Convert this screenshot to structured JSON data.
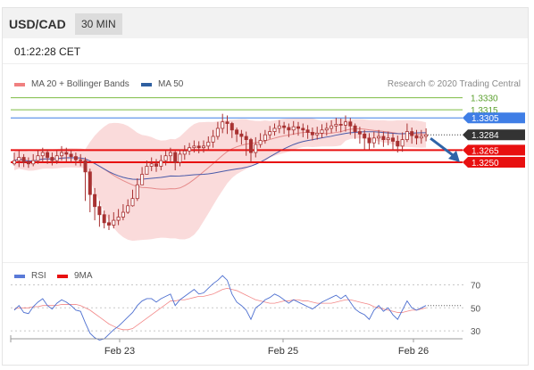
{
  "header": {
    "symbol": "USD/CAD",
    "timeframe": "30 MIN"
  },
  "clock": "01:22:28 CET",
  "credit": "Research © 2020 Trading Central",
  "colors": {
    "candle": "#a83232",
    "bands": "#f8c8c8",
    "ma20": "#e58a8a",
    "ma50": "#4a5aa8",
    "resistance_green": "#7dbb42",
    "resistance_blue": "#3f7ee6",
    "support_red": "#e81010",
    "rsi": "#4d6fd0",
    "rsi_ma": "#e81010",
    "arrow": "#2f64a8",
    "price_tag": "#333333"
  },
  "chart_data": [
    {
      "type": "candlestick",
      "title": "",
      "legend": [
        {
          "label": "MA 20 + Bollinger Bands",
          "color": "#f08080"
        },
        {
          "label": "MA 50",
          "color": "#2f5fa0"
        }
      ],
      "ylim": [
        1.3135,
        1.3345
      ],
      "x_ticks": [
        "Feb 23",
        "Feb 25",
        "Feb 26"
      ],
      "levels": [
        {
          "value": 1.333,
          "label": "1.3330",
          "style": "resistance-green"
        },
        {
          "value": 1.3315,
          "label": "1.3315",
          "style": "resistance-green"
        },
        {
          "value": 1.3305,
          "label": "1.3305",
          "style": "resistance-blue"
        },
        {
          "value": 1.3265,
          "label": "1.3265",
          "style": "support-red"
        },
        {
          "value": 1.325,
          "label": "1.3250",
          "style": "support-red"
        }
      ],
      "last_price": {
        "value": 1.3284,
        "label": "1.3284"
      },
      "forecast": {
        "from": 1.3284,
        "to": 1.325,
        "direction": "down"
      },
      "close": [
        1.3252,
        1.3256,
        1.325,
        1.3248,
        1.3252,
        1.3258,
        1.3262,
        1.3256,
        1.3252,
        1.3258,
        1.3262,
        1.326,
        1.3257,
        1.3253,
        1.3252,
        1.3238,
        1.321,
        1.3195,
        1.3185,
        1.3175,
        1.3172,
        1.3178,
        1.3182,
        1.3188,
        1.3196,
        1.3205,
        1.3222,
        1.3235,
        1.3245,
        1.3248,
        1.3245,
        1.3252,
        1.3258,
        1.3262,
        1.325,
        1.326,
        1.3264,
        1.3268,
        1.327,
        1.3268,
        1.327,
        1.3275,
        1.3282,
        1.3292,
        1.33,
        1.3298,
        1.329,
        1.3285,
        1.3282,
        1.3278,
        1.3262,
        1.3272,
        1.3277,
        1.3284,
        1.3288,
        1.3292,
        1.3295,
        1.3293,
        1.329,
        1.3294,
        1.3292,
        1.329,
        1.3287,
        1.3284,
        1.3286,
        1.329,
        1.3292,
        1.3295,
        1.3297,
        1.3296,
        1.33,
        1.3295,
        1.3288,
        1.3285,
        1.328,
        1.3274,
        1.328,
        1.3282,
        1.3278,
        1.328,
        1.3276,
        1.327,
        1.3278,
        1.3288,
        1.3283,
        1.328,
        1.3282,
        1.3284
      ],
      "low": [
        1.3246,
        1.3244,
        1.3244,
        1.3243,
        1.3245,
        1.3248,
        1.325,
        1.3248,
        1.3246,
        1.3248,
        1.3252,
        1.3251,
        1.325,
        1.3246,
        1.3245,
        1.3202,
        1.3188,
        1.3178,
        1.317,
        1.3168,
        1.3166,
        1.3168,
        1.3172,
        1.3178,
        1.3186,
        1.3195,
        1.3202,
        1.3223,
        1.3236,
        1.3239,
        1.3238,
        1.324,
        1.3246,
        1.325,
        1.324,
        1.3245,
        1.3253,
        1.3259,
        1.3262,
        1.3261,
        1.3262,
        1.3265,
        1.3268,
        1.3278,
        1.3286,
        1.3285,
        1.328,
        1.3275,
        1.3272,
        1.3258,
        1.325,
        1.3256,
        1.3268,
        1.3273,
        1.3279,
        1.3283,
        1.3286,
        1.3285,
        1.3281,
        1.3284,
        1.3283,
        1.3281,
        1.3279,
        1.3277,
        1.3278,
        1.328,
        1.3283,
        1.3286,
        1.3288,
        1.3287,
        1.3288,
        1.3284,
        1.3279,
        1.3273,
        1.3266,
        1.3266,
        1.3268,
        1.3272,
        1.3269,
        1.3271,
        1.3265,
        1.3262,
        1.3263,
        1.3275,
        1.3273,
        1.3272,
        1.3273,
        1.3276
      ],
      "high": [
        1.3262,
        1.3264,
        1.326,
        1.3256,
        1.326,
        1.3265,
        1.3268,
        1.3266,
        1.3262,
        1.3264,
        1.327,
        1.3268,
        1.3265,
        1.3262,
        1.326,
        1.3256,
        1.3242,
        1.3218,
        1.3202,
        1.319,
        1.3185,
        1.3188,
        1.3192,
        1.3198,
        1.3204,
        1.3216,
        1.323,
        1.3244,
        1.3252,
        1.3256,
        1.3254,
        1.3259,
        1.3264,
        1.3268,
        1.3264,
        1.3266,
        1.3271,
        1.3274,
        1.3277,
        1.3276,
        1.3277,
        1.3282,
        1.329,
        1.33,
        1.331,
        1.3308,
        1.33,
        1.3293,
        1.329,
        1.3288,
        1.328,
        1.3281,
        1.3286,
        1.329,
        1.3295,
        1.3298,
        1.3302,
        1.33,
        1.3298,
        1.3301,
        1.33,
        1.3298,
        1.3296,
        1.3293,
        1.3294,
        1.3297,
        1.3299,
        1.3302,
        1.3305,
        1.3304,
        1.3308,
        1.3305,
        1.3298,
        1.3294,
        1.329,
        1.3286,
        1.3288,
        1.329,
        1.3288,
        1.3288,
        1.3286,
        1.3283,
        1.3287,
        1.3298,
        1.3293,
        1.329,
        1.329,
        1.3292
      ]
    },
    {
      "type": "line",
      "title": "",
      "legend": [
        {
          "label": "RSI",
          "color": "#5a7ad8"
        },
        {
          "label": "9MA",
          "color": "#e81010"
        }
      ],
      "ylim": [
        20,
        82
      ],
      "y_ticks": [
        70,
        50,
        30
      ],
      "series": [
        {
          "name": "RSI",
          "values": [
            48,
            52,
            46,
            45,
            51,
            55,
            58,
            52,
            49,
            54,
            57,
            55,
            52,
            48,
            47,
            37,
            28,
            24,
            22,
            23,
            27,
            31,
            34,
            38,
            42,
            46,
            52,
            56,
            58,
            58,
            55,
            58,
            60,
            62,
            52,
            57,
            60,
            63,
            66,
            62,
            63,
            67,
            71,
            74,
            78,
            74,
            62,
            55,
            52,
            48,
            40,
            50,
            53,
            57,
            59,
            62,
            60,
            57,
            54,
            57,
            55,
            53,
            51,
            49,
            52,
            55,
            57,
            59,
            61,
            58,
            61,
            55,
            49,
            46,
            44,
            40,
            48,
            52,
            47,
            50,
            44,
            40,
            48,
            56,
            50,
            48,
            50,
            52
          ]
        },
        {
          "name": "9MA",
          "values": [
            49,
            50,
            50,
            50,
            51,
            51,
            52,
            52,
            52,
            52,
            53,
            53,
            53,
            53,
            52,
            50,
            48,
            45,
            42,
            39,
            36,
            34,
            32,
            31,
            31,
            32,
            35,
            38,
            41,
            44,
            47,
            50,
            53,
            56,
            56,
            57,
            57,
            58,
            59,
            60,
            60,
            61,
            62,
            64,
            66,
            67,
            66,
            65,
            63,
            61,
            59,
            57,
            56,
            55,
            54,
            54,
            55,
            56,
            56,
            57,
            57,
            56,
            56,
            55,
            54,
            54,
            54,
            54,
            55,
            56,
            57,
            57,
            56,
            55,
            54,
            53,
            51,
            50,
            49,
            48,
            47,
            46,
            46,
            47,
            48,
            48,
            49,
            50
          ]
        }
      ]
    }
  ]
}
